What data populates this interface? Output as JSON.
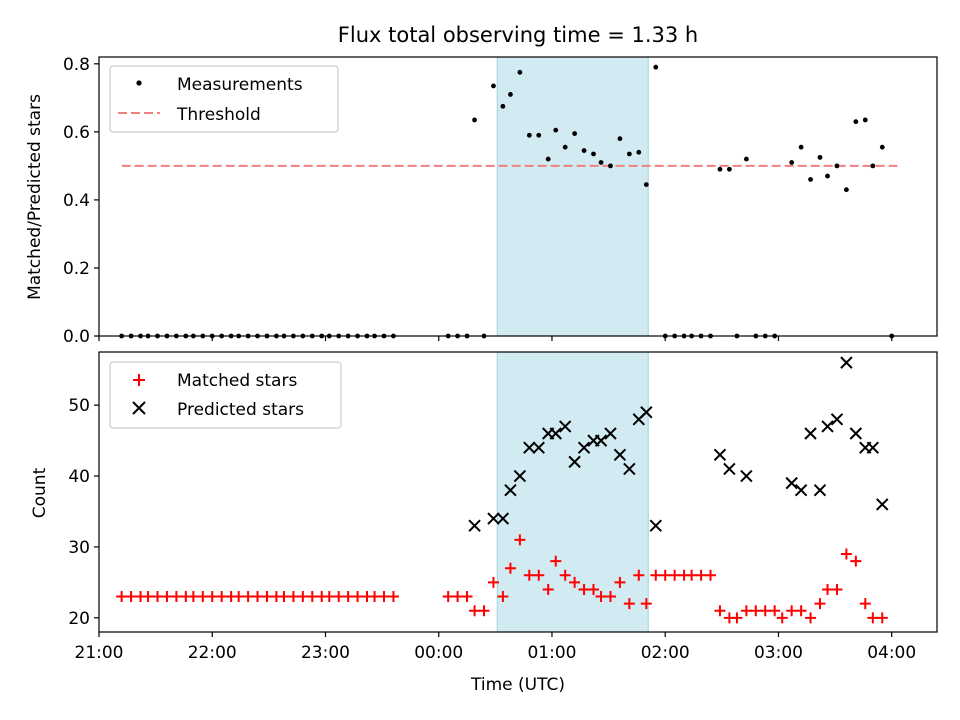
{
  "chart_data": [
    {
      "type": "scatter",
      "title": "Flux total observing time = 1.33 h",
      "xlabel": "",
      "ylabel": "Matched/Predicted stars",
      "ylim": [
        0,
        0.82
      ],
      "xlim": [
        "21:00",
        "04:24"
      ],
      "yticks": [
        "0.0",
        "0.2",
        "0.4",
        "0.6",
        "0.8"
      ],
      "legend": {
        "placement": "top-left",
        "entries": [
          "Measurements",
          "Threshold"
        ]
      },
      "threshold": {
        "name": "Threshold",
        "y": 0.5,
        "x_start": "21:12",
        "x_end": "04:03",
        "color": "#f08080",
        "style": "dashed"
      },
      "highlight": {
        "x_start": "00:31",
        "x_end": "01:51",
        "color": "#add8e6"
      },
      "series": [
        {
          "name": "Measurements",
          "color": "#000000",
          "marker": "dot",
          "points": [
            [
              "21:12",
              0
            ],
            [
              "21:17",
              0
            ],
            [
              "21:22",
              0
            ],
            [
              "21:26",
              0
            ],
            [
              "21:31",
              0
            ],
            [
              "21:36",
              0
            ],
            [
              "21:41",
              0
            ],
            [
              "21:46",
              0
            ],
            [
              "21:50",
              0
            ],
            [
              "21:55",
              0
            ],
            [
              "22:00",
              0
            ],
            [
              "22:05",
              0
            ],
            [
              "22:10",
              0
            ],
            [
              "22:14",
              0
            ],
            [
              "22:19",
              0
            ],
            [
              "22:24",
              0
            ],
            [
              "22:29",
              0
            ],
            [
              "22:34",
              0
            ],
            [
              "22:38",
              0
            ],
            [
              "22:43",
              0
            ],
            [
              "22:48",
              0
            ],
            [
              "22:53",
              0
            ],
            [
              "22:58",
              0
            ],
            [
              "23:02",
              0
            ],
            [
              "23:07",
              0
            ],
            [
              "23:12",
              0
            ],
            [
              "23:17",
              0
            ],
            [
              "23:22",
              0
            ],
            [
              "23:26",
              0
            ],
            [
              "23:31",
              0
            ],
            [
              "23:36",
              0
            ],
            [
              "00:05",
              0
            ],
            [
              "00:10",
              0
            ],
            [
              "00:15",
              0
            ],
            [
              "00:19",
              0.635
            ],
            [
              "00:24",
              0
            ],
            [
              "00:29",
              0.735
            ],
            [
              "00:34",
              0.675
            ],
            [
              "00:38",
              0.71
            ],
            [
              "00:43",
              0.775
            ],
            [
              "00:48",
              0.59
            ],
            [
              "00:53",
              0.59
            ],
            [
              "00:58",
              0.52
            ],
            [
              "01:02",
              0.605
            ],
            [
              "01:07",
              0.555
            ],
            [
              "01:12",
              0.595
            ],
            [
              "01:17",
              0.545
            ],
            [
              "01:22",
              0.535
            ],
            [
              "01:26",
              0.51
            ],
            [
              "01:31",
              0.5
            ],
            [
              "01:36",
              0.58
            ],
            [
              "01:41",
              0.535
            ],
            [
              "01:46",
              0.54
            ],
            [
              "01:50",
              0.445
            ],
            [
              "01:55",
              0.79
            ],
            [
              "02:00",
              0
            ],
            [
              "02:05",
              0
            ],
            [
              "02:10",
              0
            ],
            [
              "02:14",
              0
            ],
            [
              "02:19",
              0
            ],
            [
              "02:24",
              0
            ],
            [
              "02:29",
              0.49
            ],
            [
              "02:34",
              0.49
            ],
            [
              "02:38",
              0
            ],
            [
              "02:43",
              0.52
            ],
            [
              "02:48",
              0
            ],
            [
              "02:53",
              0
            ],
            [
              "02:58",
              0
            ],
            [
              "03:07",
              0.51
            ],
            [
              "03:12",
              0.555
            ],
            [
              "03:17",
              0.46
            ],
            [
              "03:22",
              0.525
            ],
            [
              "03:26",
              0.47
            ],
            [
              "03:31",
              0.5
            ],
            [
              "03:36",
              0.43
            ],
            [
              "03:41",
              0.63
            ],
            [
              "03:46",
              0.635
            ],
            [
              "03:50",
              0.5
            ],
            [
              "03:55",
              0.555
            ],
            [
              "04:00",
              0
            ]
          ]
        }
      ]
    },
    {
      "type": "scatter",
      "title": "",
      "xlabel": "Time (UTC)",
      "ylabel": "Count",
      "ylim": [
        18,
        57.5
      ],
      "xlim": [
        "21:00",
        "04:24"
      ],
      "xticks": [
        "21:00",
        "22:00",
        "23:00",
        "00:00",
        "01:00",
        "02:00",
        "03:00",
        "04:00"
      ],
      "yticks": [
        "20",
        "30",
        "40",
        "50"
      ],
      "legend": {
        "placement": "top-left",
        "entries": [
          "Matched stars",
          "Predicted stars"
        ]
      },
      "highlight": {
        "x_start": "00:31",
        "x_end": "01:51",
        "color": "#add8e6"
      },
      "series": [
        {
          "name": "Matched stars",
          "color": "#ff0000",
          "marker": "plus",
          "points": [
            [
              "21:12",
              23
            ],
            [
              "21:17",
              23
            ],
            [
              "21:22",
              23
            ],
            [
              "21:26",
              23
            ],
            [
              "21:31",
              23
            ],
            [
              "21:36",
              23
            ],
            [
              "21:41",
              23
            ],
            [
              "21:46",
              23
            ],
            [
              "21:50",
              23
            ],
            [
              "21:55",
              23
            ],
            [
              "22:00",
              23
            ],
            [
              "22:05",
              23
            ],
            [
              "22:10",
              23
            ],
            [
              "22:14",
              23
            ],
            [
              "22:19",
              23
            ],
            [
              "22:24",
              23
            ],
            [
              "22:29",
              23
            ],
            [
              "22:34",
              23
            ],
            [
              "22:38",
              23
            ],
            [
              "22:43",
              23
            ],
            [
              "22:48",
              23
            ],
            [
              "22:53",
              23
            ],
            [
              "22:58",
              23
            ],
            [
              "23:02",
              23
            ],
            [
              "23:07",
              23
            ],
            [
              "23:12",
              23
            ],
            [
              "23:17",
              23
            ],
            [
              "23:22",
              23
            ],
            [
              "23:26",
              23
            ],
            [
              "23:31",
              23
            ],
            [
              "23:36",
              23
            ],
            [
              "00:05",
              23
            ],
            [
              "00:10",
              23
            ],
            [
              "00:15",
              23
            ],
            [
              "00:19",
              21
            ],
            [
              "00:24",
              21
            ],
            [
              "00:29",
              25
            ],
            [
              "00:34",
              23
            ],
            [
              "00:38",
              27
            ],
            [
              "00:43",
              31
            ],
            [
              "00:48",
              26
            ],
            [
              "00:53",
              26
            ],
            [
              "00:58",
              24
            ],
            [
              "01:02",
              28
            ],
            [
              "01:07",
              26
            ],
            [
              "01:12",
              25
            ],
            [
              "01:17",
              24
            ],
            [
              "01:22",
              24
            ],
            [
              "01:26",
              23
            ],
            [
              "01:31",
              23
            ],
            [
              "01:36",
              25
            ],
            [
              "01:41",
              22
            ],
            [
              "01:46",
              26
            ],
            [
              "01:50",
              22
            ],
            [
              "01:55",
              26
            ],
            [
              "02:00",
              26
            ],
            [
              "02:05",
              26
            ],
            [
              "02:10",
              26
            ],
            [
              "02:14",
              26
            ],
            [
              "02:19",
              26
            ],
            [
              "02:24",
              26
            ],
            [
              "02:29",
              21
            ],
            [
              "02:34",
              20
            ],
            [
              "02:38",
              20
            ],
            [
              "02:43",
              21
            ],
            [
              "02:48",
              21
            ],
            [
              "02:53",
              21
            ],
            [
              "02:58",
              21
            ],
            [
              "03:02",
              20
            ],
            [
              "03:07",
              21
            ],
            [
              "03:12",
              21
            ],
            [
              "03:17",
              20
            ],
            [
              "03:22",
              22
            ],
            [
              "03:26",
              24
            ],
            [
              "03:31",
              24
            ],
            [
              "03:36",
              29
            ],
            [
              "03:41",
              28
            ],
            [
              "03:46",
              22
            ],
            [
              "03:50",
              20
            ],
            [
              "03:55",
              20
            ]
          ]
        },
        {
          "name": "Predicted stars",
          "color": "#000000",
          "marker": "x",
          "points": [
            [
              "00:19",
              33
            ],
            [
              "00:29",
              34
            ],
            [
              "00:34",
              34
            ],
            [
              "00:38",
              38
            ],
            [
              "00:43",
              40
            ],
            [
              "00:48",
              44
            ],
            [
              "00:53",
              44
            ],
            [
              "00:58",
              46
            ],
            [
              "01:02",
              46
            ],
            [
              "01:07",
              47
            ],
            [
              "01:12",
              42
            ],
            [
              "01:17",
              44
            ],
            [
              "01:22",
              45
            ],
            [
              "01:26",
              45
            ],
            [
              "01:31",
              46
            ],
            [
              "01:36",
              43
            ],
            [
              "01:41",
              41
            ],
            [
              "01:46",
              48
            ],
            [
              "01:50",
              49
            ],
            [
              "01:55",
              33
            ],
            [
              "02:29",
              43
            ],
            [
              "02:34",
              41
            ],
            [
              "02:43",
              40
            ],
            [
              "03:07",
              39
            ],
            [
              "03:12",
              38
            ],
            [
              "03:17",
              46
            ],
            [
              "03:22",
              38
            ],
            [
              "03:26",
              47
            ],
            [
              "03:31",
              48
            ],
            [
              "03:36",
              56
            ],
            [
              "03:41",
              46
            ],
            [
              "03:46",
              44
            ],
            [
              "03:50",
              44
            ],
            [
              "03:55",
              36
            ]
          ]
        }
      ]
    }
  ]
}
